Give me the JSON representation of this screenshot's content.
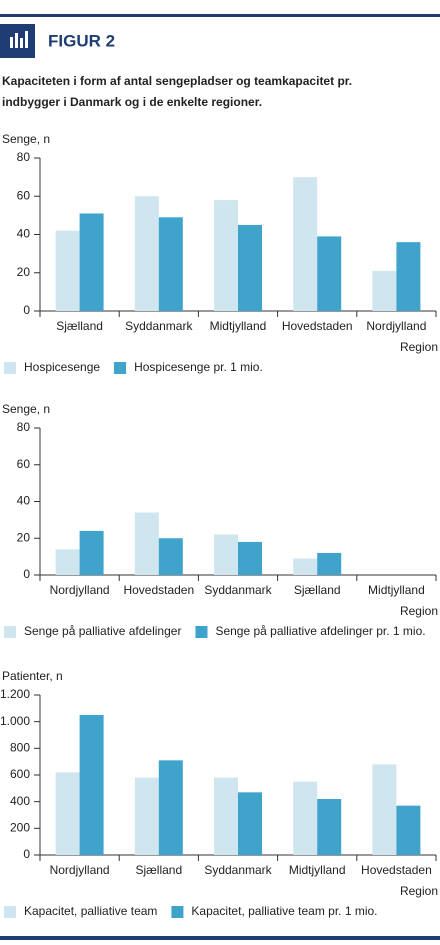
{
  "header": {
    "label": "FIGUR 2"
  },
  "caption": [
    "Kapaciteten i form af antal sengepladser og teamkapacitet pr.",
    "indbygger i Danmark og i de enkelte regioner."
  ],
  "chart_data": [
    {
      "type": "bar",
      "y_label": "Senge, n",
      "x_label": "Region",
      "categories": [
        "Sjælland",
        "Syddanmark",
        "Midtjylland",
        "Hovedstaden",
        "Nordjylland"
      ],
      "series": [
        {
          "name": "Hospicesenge",
          "color": "#cfe6f0",
          "values": [
            42,
            60,
            58,
            70,
            21
          ]
        },
        {
          "name": "Hospicesenge pr. 1 mio.",
          "color": "#3fa3cc",
          "values": [
            51,
            49,
            45,
            39,
            36
          ]
        }
      ],
      "ylim": [
        0,
        80
      ],
      "yticks": [
        0,
        20,
        40,
        60,
        80
      ],
      "grid": false
    },
    {
      "type": "bar",
      "y_label": "Senge, n",
      "x_label": "Region",
      "categories": [
        "Nordjylland",
        "Hovedstaden",
        "Syddanmark",
        "Sjælland",
        "Midtjylland"
      ],
      "series": [
        {
          "name": "Senge på palliative afdelinger",
          "color": "#cfe6f0",
          "values": [
            14,
            34,
            22,
            9,
            0
          ]
        },
        {
          "name": "Senge på palliative afdelinger pr. 1 mio.",
          "color": "#3fa3cc",
          "values": [
            24,
            20,
            18,
            12,
            0
          ]
        }
      ],
      "ylim": [
        0,
        80
      ],
      "yticks": [
        0,
        20,
        40,
        60,
        80
      ],
      "grid": false
    },
    {
      "type": "bar",
      "y_label": "Patienter, n",
      "x_label": "Region",
      "categories": [
        "Nordjylland",
        "Sjælland",
        "Syddanmark",
        "Midtjylland",
        "Hovedstaden"
      ],
      "series": [
        {
          "name": "Kapacitet, palliative team",
          "color": "#cfe6f0",
          "values": [
            620,
            580,
            580,
            550,
            680
          ]
        },
        {
          "name": "Kapacitet, palliative team pr. 1 mio.",
          "color": "#3fa3cc",
          "values": [
            1050,
            710,
            470,
            420,
            370
          ]
        }
      ],
      "ylim": [
        0,
        1200
      ],
      "yticks": [
        0,
        200,
        400,
        600,
        800,
        {
          "value": 1000,
          "label": "1.000"
        },
        {
          "value": 1200,
          "label": "1.200"
        }
      ],
      "grid": false
    }
  ]
}
